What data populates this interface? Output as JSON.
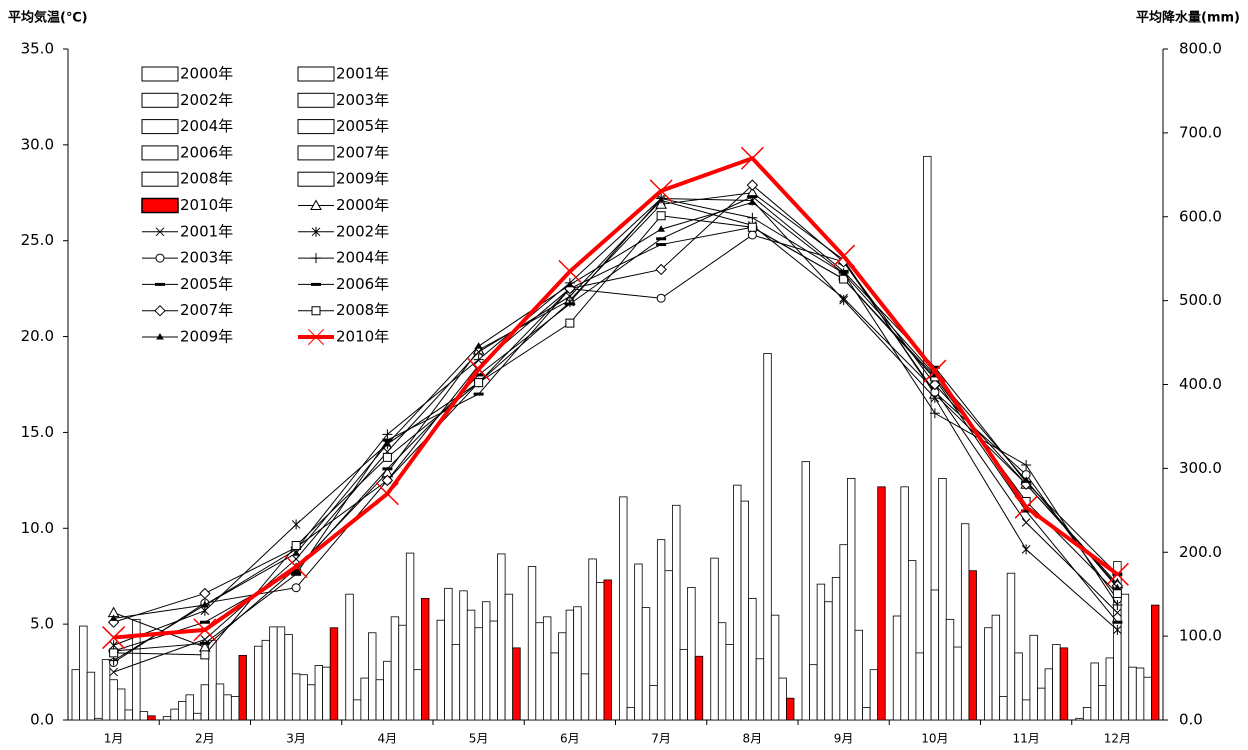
{
  "chart_data": {
    "type": "bar-line",
    "y_label": "平均気温(℃)",
    "y2_label": "平均降水量(mm)",
    "categories": [
      "1月",
      "2月",
      "3月",
      "4月",
      "5月",
      "6月",
      "7月",
      "8月",
      "9月",
      "10月",
      "11月",
      "12月"
    ],
    "ylim": [
      0,
      35
    ],
    "yticks": [
      {
        "value": 0,
        "label": "0.0"
      },
      {
        "value": 5,
        "label": "5.0"
      },
      {
        "value": 10,
        "label": "10.0"
      },
      {
        "value": 15,
        "label": "15.0"
      },
      {
        "value": 20,
        "label": "20.0"
      },
      {
        "value": 25,
        "label": "25.0"
      },
      {
        "value": 30,
        "label": "30.0"
      },
      {
        "value": 35,
        "label": "35.0"
      }
    ],
    "y2lim": [
      0,
      800
    ],
    "y2ticks": [
      {
        "value": 0,
        "label": "0.0"
      },
      {
        "value": 100,
        "label": "100.0"
      },
      {
        "value": 200,
        "label": "200.0"
      },
      {
        "value": 300,
        "label": "300.0"
      },
      {
        "value": 400,
        "label": "400.0"
      },
      {
        "value": 500,
        "label": "500.0"
      },
      {
        "value": 600,
        "label": "600.0"
      },
      {
        "value": 700,
        "label": "700.0"
      },
      {
        "value": 800,
        "label": "800.0"
      }
    ],
    "series": [
      {
        "name": "2000年",
        "type": "bar",
        "axis": "y2",
        "color": "#ffffff",
        "values": [
          60,
          4,
          88,
          150,
          119,
          183,
          266,
          193,
          308,
          124,
          110,
          2
        ]
      },
      {
        "name": "2001年",
        "type": "bar",
        "axis": "y2",
        "color": "#ffffff",
        "values": [
          112,
          13,
          95,
          24,
          157,
          116,
          15,
          116,
          66,
          278,
          125,
          15
        ]
      },
      {
        "name": "2002年",
        "type": "bar",
        "axis": "y2",
        "color": "#ffffff",
        "values": [
          57,
          22,
          111,
          50,
          90,
          123,
          186,
          90,
          162,
          190,
          28,
          68
        ]
      },
      {
        "name": "2003年",
        "type": "bar",
        "axis": "y2",
        "color": "#ffffff",
        "values": [
          2,
          30,
          111,
          104,
          154,
          80,
          134,
          280,
          141,
          80,
          175,
          41
        ]
      },
      {
        "name": "2004年",
        "type": "bar",
        "axis": "y2",
        "color": "#ffffff",
        "values": [
          72,
          8,
          102,
          48,
          131,
          104,
          41,
          261,
          170,
          672,
          80,
          74
        ]
      },
      {
        "name": "2005年",
        "type": "bar",
        "axis": "y2",
        "color": "#ffffff",
        "values": [
          48,
          42,
          55,
          70,
          110,
          131,
          215,
          145,
          209,
          155,
          24,
          189
        ]
      },
      {
        "name": "2006年",
        "type": "bar",
        "axis": "y2",
        "color": "#ffffff",
        "values": [
          37,
          95,
          54,
          123,
          141,
          135,
          178,
          73,
          288,
          288,
          101,
          150
        ]
      },
      {
        "name": "2007年",
        "type": "bar",
        "axis": "y2",
        "color": "#ffffff",
        "values": [
          12,
          43,
          42,
          113,
          118,
          55,
          256,
          437,
          107,
          120,
          38,
          63
        ]
      },
      {
        "name": "2008年",
        "type": "bar",
        "axis": "y2",
        "color": "#ffffff",
        "values": [
          120,
          30,
          65,
          199,
          198,
          192,
          84,
          125,
          15,
          87,
          61,
          62
        ]
      },
      {
        "name": "2009年",
        "type": "bar",
        "axis": "y2",
        "color": "#ffffff",
        "values": [
          10,
          28,
          63,
          60,
          150,
          164,
          158,
          50,
          60,
          234,
          90,
          51
        ]
      },
      {
        "name": "2010年",
        "type": "bar",
        "axis": "y2",
        "color": "#ff0000",
        "values": [
          5,
          77,
          110,
          145,
          86,
          167,
          76,
          26,
          278,
          178,
          86,
          137
        ]
      },
      {
        "name": "2000年",
        "type": "line",
        "axis": "y",
        "color": "#000000",
        "marker": "triangle",
        "values": [
          5.6,
          3.8,
          7.9,
          12.9,
          19.3,
          21.9,
          26.9,
          27.5,
          24.0,
          17.0,
          12.3,
          7.1
        ]
      },
      {
        "name": "2001年",
        "type": "line",
        "axis": "y",
        "color": "#000000",
        "marker": "x",
        "values": [
          2.5,
          4.2,
          8.4,
          14.0,
          19.2,
          22.1,
          27.1,
          25.8,
          22.0,
          17.2,
          10.3,
          5.6
        ]
      },
      {
        "name": "2002年",
        "type": "line",
        "axis": "y",
        "color": "#000000",
        "marker": "star",
        "values": [
          3.9,
          5.7,
          10.2,
          14.4,
          17.6,
          21.8,
          27.2,
          27.1,
          21.9,
          16.8,
          8.9,
          4.7
        ]
      },
      {
        "name": "2003年",
        "type": "line",
        "axis": "y",
        "color": "#000000",
        "marker": "circle",
        "values": [
          3.0,
          6.1,
          6.9,
          12.5,
          17.6,
          22.5,
          22.0,
          25.3,
          23.9,
          17.1,
          12.8,
          6.3
        ]
      },
      {
        "name": "2004年",
        "type": "line",
        "axis": "y",
        "color": "#000000",
        "marker": "plus",
        "values": [
          3.1,
          6.0,
          8.9,
          14.9,
          18.8,
          22.8,
          27.2,
          26.2,
          23.3,
          16.0,
          13.3,
          6.0
        ]
      },
      {
        "name": "2005年",
        "type": "line",
        "axis": "y",
        "color": "#000000",
        "marker": "dash",
        "values": [
          3.6,
          4.0,
          7.6,
          14.6,
          17.0,
          22.5,
          24.8,
          25.7,
          23.0,
          17.8,
          10.9,
          5.1
        ]
      },
      {
        "name": "2006年",
        "type": "line",
        "axis": "y",
        "color": "#000000",
        "marker": "dash",
        "values": [
          3.6,
          5.1,
          7.8,
          13.1,
          18.0,
          21.7,
          25.1,
          27.3,
          23.4,
          18.4,
          12.4,
          7.6
        ]
      },
      {
        "name": "2007年",
        "type": "line",
        "axis": "y",
        "color": "#000000",
        "marker": "diamond",
        "values": [
          5.1,
          6.6,
          9.0,
          12.5,
          18.5,
          22.5,
          23.5,
          27.9,
          23.9,
          17.5,
          12.3,
          7.0
        ]
      },
      {
        "name": "2008年",
        "type": "line",
        "axis": "y",
        "color": "#000000",
        "marker": "square",
        "values": [
          3.5,
          3.4,
          9.1,
          13.7,
          17.6,
          20.7,
          26.3,
          25.7,
          23.0,
          17.9,
          11.4,
          6.6
        ]
      },
      {
        "name": "2009年",
        "type": "line",
        "axis": "y",
        "color": "#000000",
        "marker": "smalltriangle",
        "values": [
          5.3,
          6.0,
          8.7,
          14.4,
          19.5,
          22.7,
          25.6,
          27.0,
          23.3,
          18.0,
          12.5,
          6.9
        ]
      },
      {
        "name": "2010年",
        "type": "line",
        "axis": "y",
        "color": "#ff0000",
        "marker": "bigx",
        "values": [
          4.3,
          4.7,
          8.0,
          11.8,
          18.3,
          23.4,
          27.6,
          29.3,
          24.2,
          18.2,
          11.1,
          7.6
        ]
      }
    ]
  }
}
